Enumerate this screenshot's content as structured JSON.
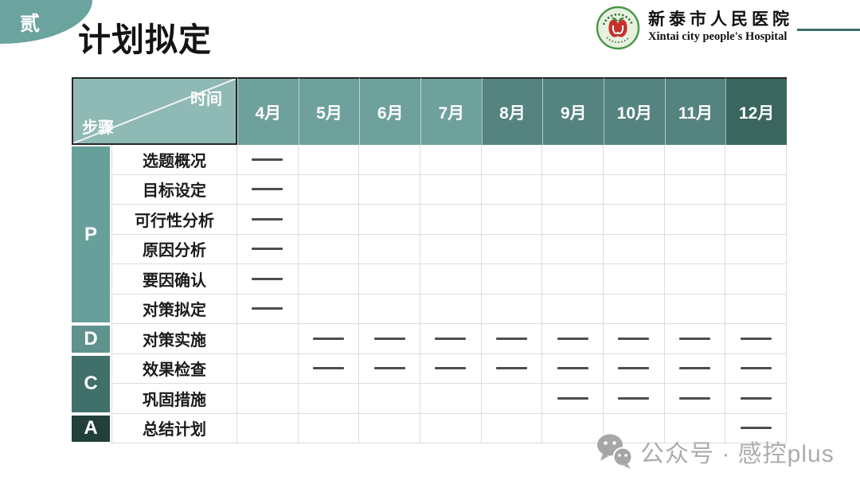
{
  "slide": {
    "badge": "贰",
    "title": "计划拟定",
    "brand": {
      "cn": "新泰市人民医院",
      "en": "Xintai city people's Hospital"
    }
  },
  "table": {
    "corner": {
      "top_right": "时间",
      "bottom_left": "步骤"
    },
    "months": [
      "4月",
      "5月",
      "6月",
      "7月",
      "8月",
      "9月",
      "10月",
      "11月",
      "12月"
    ],
    "month_colors": [
      "#6fa19c",
      "#6fa19c",
      "#6fa19c",
      "#6fa19c",
      "#55837f",
      "#55837f",
      "#55837f",
      "#55837f",
      "#3a665f"
    ],
    "groups": [
      {
        "label": "P",
        "color": "#67a09b",
        "row_count": 6
      },
      {
        "label": "D",
        "color": "#5f928d",
        "row_count": 1
      },
      {
        "label": "C",
        "color": "#416f6a",
        "row_count": 2
      },
      {
        "label": "A",
        "color": "#223f3a",
        "row_count": 1
      }
    ],
    "rows": [
      {
        "group": "P",
        "label": "选题概况",
        "marks": [
          "4月"
        ]
      },
      {
        "group": "P",
        "label": "目标设定",
        "marks": [
          "4月"
        ]
      },
      {
        "group": "P",
        "label": "可行性分析",
        "marks": [
          "4月"
        ]
      },
      {
        "group": "P",
        "label": "原因分析",
        "marks": [
          "4月"
        ]
      },
      {
        "group": "P",
        "label": "要因确认",
        "marks": [
          "4月"
        ]
      },
      {
        "group": "P",
        "label": "对策拟定",
        "marks": [
          "4月"
        ]
      },
      {
        "group": "D",
        "label": "对策实施",
        "marks": [
          "5月",
          "6月",
          "7月",
          "8月",
          "9月",
          "10月",
          "11月",
          "12月"
        ]
      },
      {
        "group": "C",
        "label": "效果检查",
        "marks": [
          "5月",
          "6月",
          "7月",
          "8月",
          "9月",
          "10月",
          "11月",
          "12月"
        ]
      },
      {
        "group": "C",
        "label": "巩固措施",
        "marks": [
          "9月",
          "10月",
          "11月",
          "12月"
        ]
      },
      {
        "group": "A",
        "label": "总结计划",
        "marks": [
          "12月"
        ]
      }
    ]
  },
  "watermark": {
    "text": "公众号 · 感控plus"
  },
  "colors": {
    "accent_teal": "#6ba39e",
    "corner_bg": "#8fb9b4",
    "header_light": "#6fa19c",
    "header_mid": "#55837f",
    "header_dark": "#3a665f",
    "grid_line": "#dadedd",
    "dash": "#4c4f4d",
    "brand_line": "#3f6f6a",
    "logo_green": "#4b9549",
    "logo_red": "#c5322b",
    "watermark_gray": "#acacac"
  }
}
